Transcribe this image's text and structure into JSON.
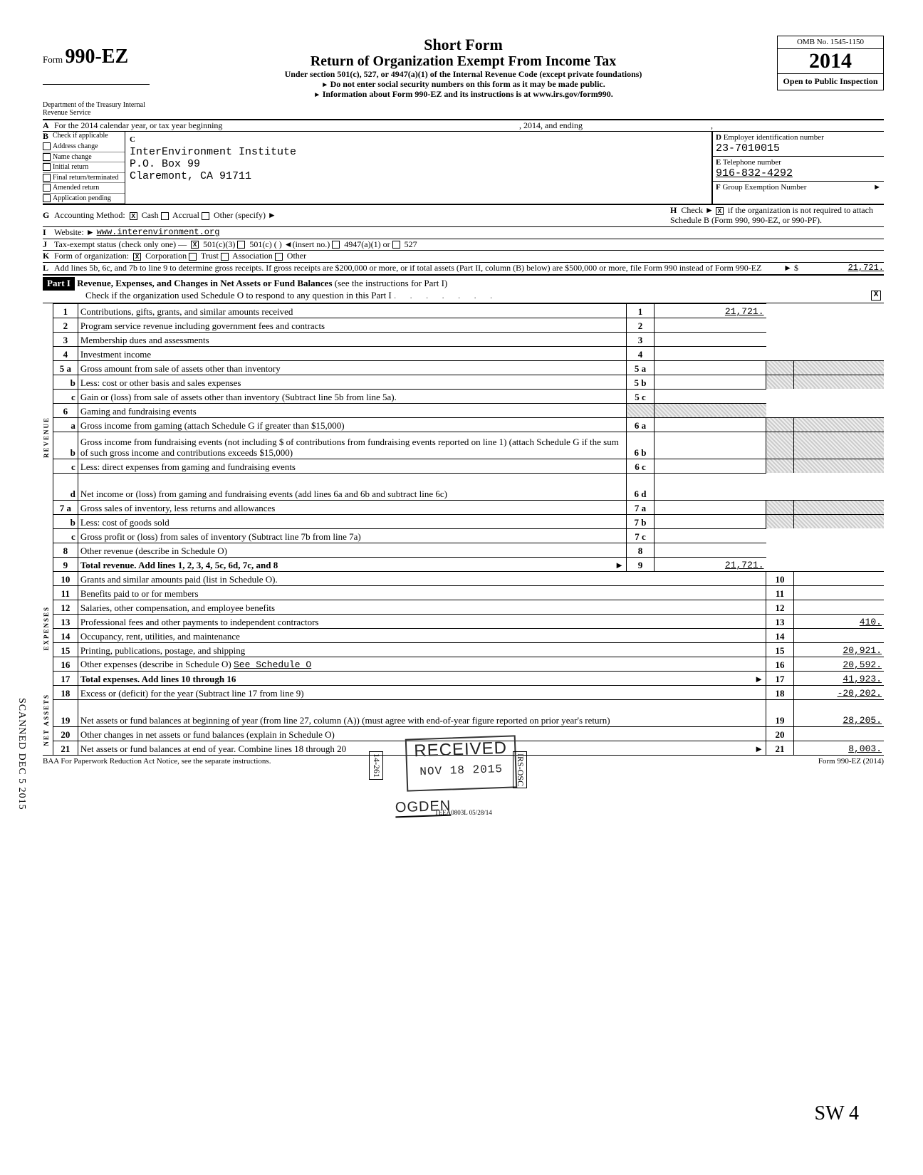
{
  "header": {
    "form_label": "Form",
    "form_no": "990-EZ",
    "short_form": "Short Form",
    "title": "Return of Organization Exempt From Income Tax",
    "under_section": "Under section 501(c), 527, or 4947(a)(1) of the Internal Revenue Code (except private foundations)",
    "no_ssn": "Do not enter social security numbers on this form as it may be made public.",
    "info": "Information about Form 990-EZ and its instructions is at www.irs.gov/form990.",
    "omb": "OMB No. 1545-1150",
    "year": "2014",
    "open_public": "Open to Public Inspection",
    "dept": "Department of the Treasury Internal Revenue Service"
  },
  "lineA": {
    "prefix": "For the 2014 calendar year, or tax year beginning",
    "mid": ", 2014, and ending",
    "end": ","
  },
  "B": {
    "label": "B",
    "heading": "Check if applicable",
    "items": [
      "Address change",
      "Name change",
      "Initial return",
      "Final return/terminated",
      "Amended return",
      "Application pending"
    ]
  },
  "C": {
    "label": "C",
    "name": "InterEnvironment Institute",
    "addr1": "P.O. Box 99",
    "addr2": "Claremont, CA 91711"
  },
  "D": {
    "label": "D",
    "heading": "Employer identification number",
    "value": "23-7010015"
  },
  "E": {
    "label": "E",
    "heading": "Telephone number",
    "value": "916-832-4292"
  },
  "F": {
    "label": "F",
    "heading": "Group Exemption Number",
    "arrow": "►"
  },
  "G": {
    "label": "G",
    "text": "Accounting Method:",
    "opts": [
      "Cash",
      "Accrual",
      "Other (specify) ►"
    ],
    "checked": 0
  },
  "H": {
    "label": "H",
    "text1": "Check ►",
    "text2": "if the organization is not required to attach Schedule B (Form 990, 990-EZ, or 990-PF).",
    "checked": true
  },
  "I": {
    "label": "I",
    "text": "Website: ►",
    "value": "www.interenvironment.org"
  },
  "J": {
    "label": "J",
    "text": "Tax-exempt status (check only one) —",
    "opts": [
      "501(c)(3)",
      "501(c) (        )  ◄(insert no.)",
      "4947(a)(1) or",
      "527"
    ],
    "checked": 0
  },
  "K": {
    "label": "K",
    "text": "Form of organization:",
    "opts": [
      "Corporation",
      "Trust",
      "Association",
      "Other"
    ],
    "checked": 0
  },
  "L": {
    "label": "L",
    "text": "Add lines 5b, 6c, and 7b to line 9 to determine gross receipts. If gross receipts are $200,000 or more, or if total assets (Part II, column (B) below) are $500,000 or more, file Form 990 instead of Form 990-EZ",
    "arrow": "► $",
    "value": "21,721."
  },
  "part1": {
    "label": "Part I",
    "title": "Revenue, Expenses, and Changes in Net Assets or Fund Balances",
    "paren": "(see the instructions for Part I)",
    "sub": "Check if the organization used Schedule O to respond to any question in this Part I",
    "checked": true
  },
  "side_labels": {
    "revenue": "REVENUE",
    "expenses": "EXPENSES",
    "net": "NET ASSETS"
  },
  "lines": [
    {
      "no": "1",
      "text": "Contributions, gifts, grants, and similar amounts received",
      "rno": "1",
      "rval": "21,721."
    },
    {
      "no": "2",
      "text": "Program service revenue including government fees and contracts",
      "rno": "2",
      "rval": ""
    },
    {
      "no": "3",
      "text": "Membership dues and assessments",
      "rno": "3",
      "rval": ""
    },
    {
      "no": "4",
      "text": "Investment income",
      "rno": "4",
      "rval": ""
    },
    {
      "no": "5 a",
      "text": "Gross amount from sale of assets other than inventory",
      "midno": "5 a",
      "midval": "",
      "rshade": true
    },
    {
      "no": "b",
      "text": "Less: cost or other basis and sales expenses",
      "midno": "5 b",
      "midval": "",
      "rshade": true,
      "sub": true
    },
    {
      "no": "c",
      "text": "Gain or (loss) from sale of assets other than inventory (Subtract line 5b from line 5a).",
      "rno": "5 c",
      "rval": "",
      "sub": true
    },
    {
      "no": "6",
      "text": "Gaming and fundraising events",
      "rshade": true
    },
    {
      "no": "a",
      "text": "Gross income from gaming (attach Schedule G if greater than $15,000)",
      "midno": "6 a",
      "midval": "",
      "rshade": true,
      "sub": true
    },
    {
      "no": "b",
      "text": "Gross income from fundraising events (not including $                              of contributions from fundraising events reported on line 1) (attach Schedule G if the sum of such gross income and contributions exceeds $15,000)",
      "midno": "6 b",
      "midval": "",
      "rshade": true,
      "sub": true,
      "tall": true
    },
    {
      "no": "c",
      "text": "Less: direct expenses from gaming and fundraising events",
      "midno": "6 c",
      "midval": "",
      "rshade": true,
      "sub": true
    },
    {
      "no": "d",
      "text": "Net income or (loss) from gaming and fundraising events (add lines 6a and 6b and subtract line 6c)",
      "rno": "6 d",
      "rval": "",
      "sub": true,
      "tall": true
    },
    {
      "no": "7 a",
      "text": "Gross sales of inventory, less returns and allowances",
      "midno": "7 a",
      "midval": "",
      "rshade": true
    },
    {
      "no": "b",
      "text": "Less: cost of goods sold",
      "midno": "7 b",
      "midval": "",
      "rshade": true,
      "sub": true
    },
    {
      "no": "c",
      "text": "Gross profit or (loss) from sales of inventory (Subtract line 7b from line 7a)",
      "rno": "7 c",
      "rval": "",
      "sub": true
    },
    {
      "no": "8",
      "text": "Other revenue (describe in Schedule O)",
      "rno": "8",
      "rval": ""
    },
    {
      "no": "9",
      "text": "Total revenue. Add lines 1, 2, 3, 4, 5c, 6d, 7c, and 8",
      "rno": "9",
      "rval": "21,721.",
      "bold": true,
      "arrow": true
    }
  ],
  "exp_lines": [
    {
      "no": "10",
      "text": "Grants and similar amounts paid (list in Schedule O).",
      "rno": "10",
      "rval": ""
    },
    {
      "no": "11",
      "text": "Benefits paid to or for members",
      "rno": "11",
      "rval": ""
    },
    {
      "no": "12",
      "text": "Salaries, other compensation, and employee benefits",
      "rno": "12",
      "rval": ""
    },
    {
      "no": "13",
      "text": "Professional fees and other payments to independent contractors",
      "rno": "13",
      "rval": "410."
    },
    {
      "no": "14",
      "text": "Occupancy, rent, utilities, and maintenance",
      "rno": "14",
      "rval": ""
    },
    {
      "no": "15",
      "text": "Printing, publications, postage, and shipping",
      "rno": "15",
      "rval": "20,921."
    },
    {
      "no": "16",
      "text": "Other expenses (describe in Schedule O)",
      "rno": "16",
      "rval": "20,592.",
      "extra": "See Schedule O"
    },
    {
      "no": "17",
      "text": "Total expenses. Add lines 10 through 16",
      "rno": "17",
      "rval": "41,923.",
      "bold": true,
      "arrow": true
    }
  ],
  "net_lines": [
    {
      "no": "18",
      "text": "Excess or (deficit) for the year (Subtract line 17 from line 9)",
      "rno": "18",
      "rval": "-20,202."
    },
    {
      "no": "19",
      "text": "Net assets or fund balances at beginning of year (from line 27, column (A)) (must agree with end-of-year figure reported on prior year's return)",
      "rno": "19",
      "rval": "28,205.",
      "tall": true
    },
    {
      "no": "20",
      "text": "Other changes in net assets or fund balances (explain in Schedule O)",
      "rno": "20",
      "rval": ""
    },
    {
      "no": "21",
      "text": "Net assets or fund balances at end of year. Combine lines 18 through 20",
      "rno": "21",
      "rval": "8,003.",
      "arrow": true
    }
  ],
  "footer": {
    "left": "BAA  For Paperwork Reduction Act Notice, see the separate instructions.",
    "right": "Form 990-EZ (2014)",
    "teea": "TEEA0803L  05/28/14"
  },
  "stamps": {
    "received": "RECEIVED",
    "received_date": "NOV 18 2015",
    "ogden": "OGDEN",
    "side1": "14-261",
    "side2": "IRS-OSC",
    "scanned": "SCANNED  DEC 5 2015",
    "sig": "SW   4"
  }
}
